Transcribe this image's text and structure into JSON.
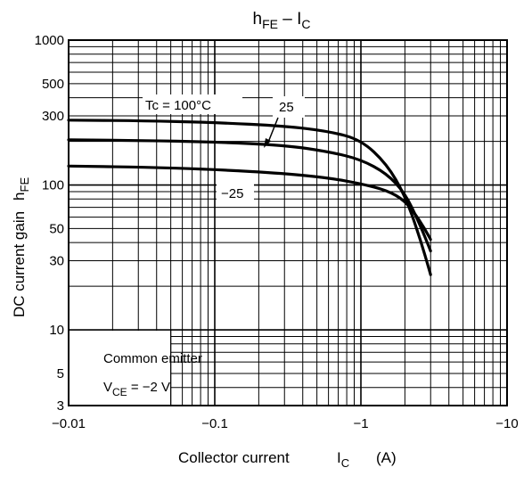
{
  "chart_data": {
    "type": "line",
    "title": {
      "main": "h",
      "main_sub": "FE",
      "sep": " – ",
      "end": "I",
      "end_sub": "C"
    },
    "x_axis": {
      "scale": "log",
      "range": [
        0.01,
        10
      ],
      "range_sign_note": "-",
      "tick_labels": [
        "−0.01",
        "−0.1",
        "−1",
        "−10"
      ],
      "tick_values": [
        0.01,
        0.1,
        1,
        10
      ],
      "label": {
        "text": "Collector current",
        "sym": "I",
        "sym_sub": "C",
        "unit": "(A)"
      }
    },
    "y_axis": {
      "scale": "log",
      "range": [
        3,
        1000
      ],
      "tick_labels": [
        "1000",
        "500",
        "300",
        "100",
        "50",
        "30",
        "10",
        "5",
        "3"
      ],
      "tick_values": [
        1000,
        500,
        300,
        100,
        50,
        30,
        10,
        5,
        3
      ],
      "label": {
        "text": "DC current gain",
        "sym": "h",
        "sym_sub": "FE"
      }
    },
    "grid": true,
    "series": [
      {
        "name": "Tc = 100°C",
        "points": [
          [
            0.01,
            280
          ],
          [
            0.03,
            278
          ],
          [
            0.1,
            270
          ],
          [
            0.3,
            255
          ],
          [
            0.6,
            235
          ],
          [
            1.0,
            205
          ],
          [
            1.5,
            140
          ],
          [
            2.0,
            85
          ],
          [
            2.5,
            45
          ],
          [
            3.0,
            24
          ]
        ]
      },
      {
        "name": "25",
        "points": [
          [
            0.01,
            205
          ],
          [
            0.03,
            203
          ],
          [
            0.1,
            198
          ],
          [
            0.3,
            188
          ],
          [
            0.6,
            170
          ],
          [
            1.0,
            150
          ],
          [
            1.5,
            120
          ],
          [
            2.0,
            88
          ],
          [
            2.5,
            55
          ],
          [
            3.0,
            35
          ]
        ]
      },
      {
        "name": "−25",
        "points": [
          [
            0.01,
            135
          ],
          [
            0.03,
            133
          ],
          [
            0.1,
            128
          ],
          [
            0.3,
            120
          ],
          [
            0.6,
            112
          ],
          [
            1.0,
            102
          ],
          [
            1.5,
            92
          ],
          [
            2.0,
            78
          ],
          [
            2.5,
            58
          ],
          [
            3.0,
            42
          ]
        ]
      }
    ],
    "annotation_box": {
      "line1": "Common emitter",
      "line2_sym": "V",
      "line2_sub": "CE",
      "line2_value": " = −2 V"
    }
  }
}
